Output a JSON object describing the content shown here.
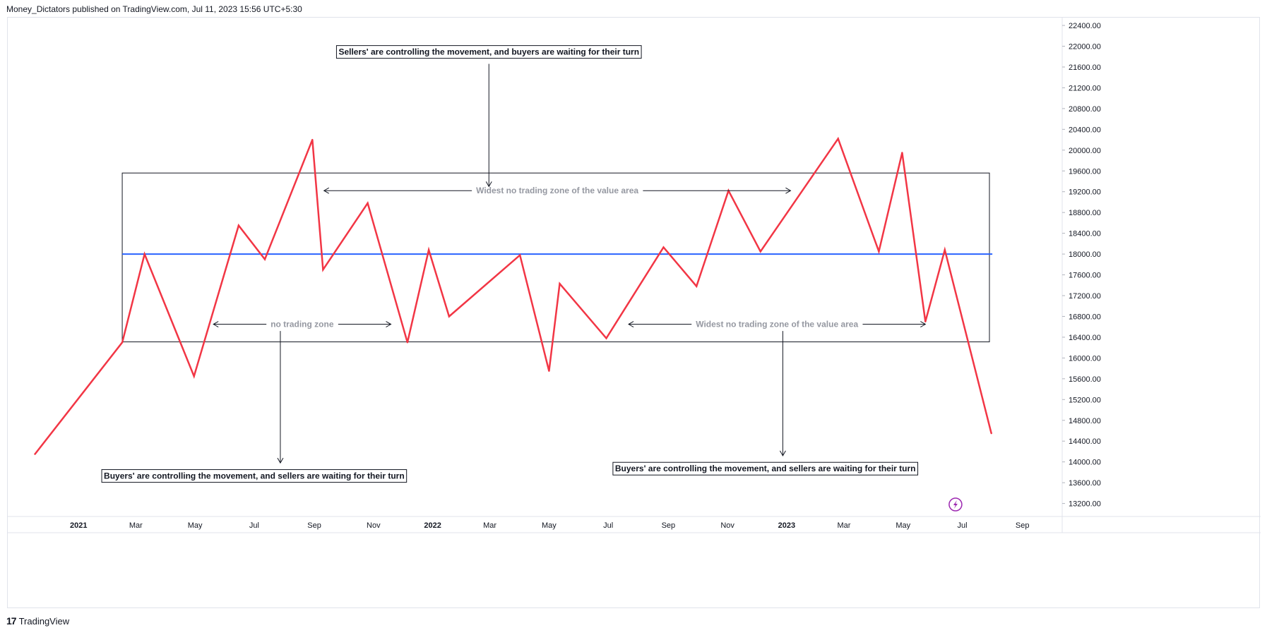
{
  "header": {
    "publisher_line": "Money_Dictators published on TradingView.com, Jul 11, 2023 15:56 UTC+5:30"
  },
  "footer": {
    "brand": "TradingView",
    "logo_glyph": "17"
  },
  "colors": {
    "price_line": "#f23645",
    "level_line": "#2962ff",
    "annotation_text": "#9598a1"
  },
  "chart_data": {
    "type": "line",
    "x_axis_labels": [
      {
        "label": "2021",
        "date": "2021-01-01",
        "bold": true
      },
      {
        "label": "Mar",
        "date": "2021-03-01"
      },
      {
        "label": "May",
        "date": "2021-05-01"
      },
      {
        "label": "Jul",
        "date": "2021-07-01"
      },
      {
        "label": "Sep",
        "date": "2021-09-01"
      },
      {
        "label": "Nov",
        "date": "2021-11-01"
      },
      {
        "label": "2022",
        "date": "2022-01-01",
        "bold": true
      },
      {
        "label": "Mar",
        "date": "2022-03-01"
      },
      {
        "label": "May",
        "date": "2022-05-01"
      },
      {
        "label": "Jul",
        "date": "2022-07-01"
      },
      {
        "label": "Sep",
        "date": "2022-09-01"
      },
      {
        "label": "Nov",
        "date": "2022-11-01"
      },
      {
        "label": "2023",
        "date": "2023-01-01",
        "bold": true
      },
      {
        "label": "Mar",
        "date": "2023-03-01"
      },
      {
        "label": "May",
        "date": "2023-05-01"
      },
      {
        "label": "Jul",
        "date": "2023-07-01"
      },
      {
        "label": "Sep",
        "date": "2023-09-01"
      }
    ],
    "y_axis_labels": [
      "22400.00",
      "22000.00",
      "21600.00",
      "21200.00",
      "20800.00",
      "20400.00",
      "20000.00",
      "19600.00",
      "19200.00",
      "18800.00",
      "18400.00",
      "18000.00",
      "17600.00",
      "17200.00",
      "16800.00",
      "16400.00",
      "16000.00",
      "15600.00",
      "15200.00",
      "14800.00",
      "14400.00",
      "14000.00",
      "13600.00",
      "13200.00"
    ],
    "ylim": [
      12950,
      22550
    ],
    "xlim": [
      "2020-10-20",
      "2023-10-12"
    ],
    "series": [
      {
        "points": [
          {
            "x": "2020-11-17",
            "y": 14150
          },
          {
            "x": "2021-02-15",
            "y": 16300
          },
          {
            "x": "2021-03-10",
            "y": 18000
          },
          {
            "x": "2021-04-30",
            "y": 15650
          },
          {
            "x": "2021-06-15",
            "y": 18550
          },
          {
            "x": "2021-07-12",
            "y": 17900
          },
          {
            "x": "2021-08-30",
            "y": 20200
          },
          {
            "x": "2021-09-10",
            "y": 17700
          },
          {
            "x": "2021-10-26",
            "y": 18980
          },
          {
            "x": "2021-12-06",
            "y": 16300
          },
          {
            "x": "2021-12-28",
            "y": 18080
          },
          {
            "x": "2022-01-18",
            "y": 16800
          },
          {
            "x": "2022-04-01",
            "y": 17980
          },
          {
            "x": "2022-05-01",
            "y": 15750
          },
          {
            "x": "2022-05-12",
            "y": 17430
          },
          {
            "x": "2022-06-29",
            "y": 16380
          },
          {
            "x": "2022-08-27",
            "y": 18130
          },
          {
            "x": "2022-09-30",
            "y": 17380
          },
          {
            "x": "2022-11-02",
            "y": 19220
          },
          {
            "x": "2022-12-05",
            "y": 18050
          },
          {
            "x": "2023-02-23",
            "y": 20220
          },
          {
            "x": "2023-04-06",
            "y": 18050
          },
          {
            "x": "2023-04-30",
            "y": 19950
          },
          {
            "x": "2023-05-24",
            "y": 16700
          },
          {
            "x": "2023-06-13",
            "y": 18080
          },
          {
            "x": "2023-07-31",
            "y": 14550
          }
        ]
      }
    ],
    "horizontal_level": {
      "y": 18000,
      "x_start": "2021-02-15",
      "x_end": "2023-08-01"
    },
    "rectangle": {
      "x_start": "2021-02-15",
      "x_end": "2023-07-29",
      "y_top": 19560,
      "y_bottom": 16310
    },
    "annotations": [
      {
        "id": "sellers-callout",
        "text": "Sellers' are controlling the movement, and buyers are waiting for their turn",
        "anchor_x": "2022-02-28",
        "text_y": 21890,
        "arrow_from_y": 21660,
        "arrow_to_y": 19300
      },
      {
        "id": "buyers-callout-left",
        "text": "Buyers' are controlling the movement, and sellers are waiting for their turn",
        "anchor_x": "2021-07-01",
        "arrow_x": "2021-07-28",
        "text_y": 13730,
        "arrow_from_y": 16520,
        "arrow_to_y": 13980
      },
      {
        "id": "buyers-callout-right",
        "text": "Buyers' are controlling the movement, and sellers are waiting for their turn",
        "anchor_x": "2022-12-10",
        "arrow_x": "2022-12-28",
        "text_y": 13870,
        "arrow_from_y": 16520,
        "arrow_to_y": 14120
      }
    ],
    "range_labels": [
      {
        "id": "widest-zone-top",
        "text": "Widest no trading zone of the value area",
        "x_start": "2021-09-11",
        "x_end": "2023-01-05",
        "y": 19220
      },
      {
        "id": "no-trading-zone",
        "text": "no trading zone",
        "x_start": "2021-05-20",
        "x_end": "2021-11-19",
        "y": 16650
      },
      {
        "id": "widest-zone-bottom",
        "text": "Widest no trading zone of the value area",
        "x_start": "2022-07-22",
        "x_end": "2023-05-24",
        "y": 16650
      }
    ],
    "replay_icon": {
      "name": "lightning-icon",
      "x": "2023-06-24",
      "y": 13180
    }
  }
}
